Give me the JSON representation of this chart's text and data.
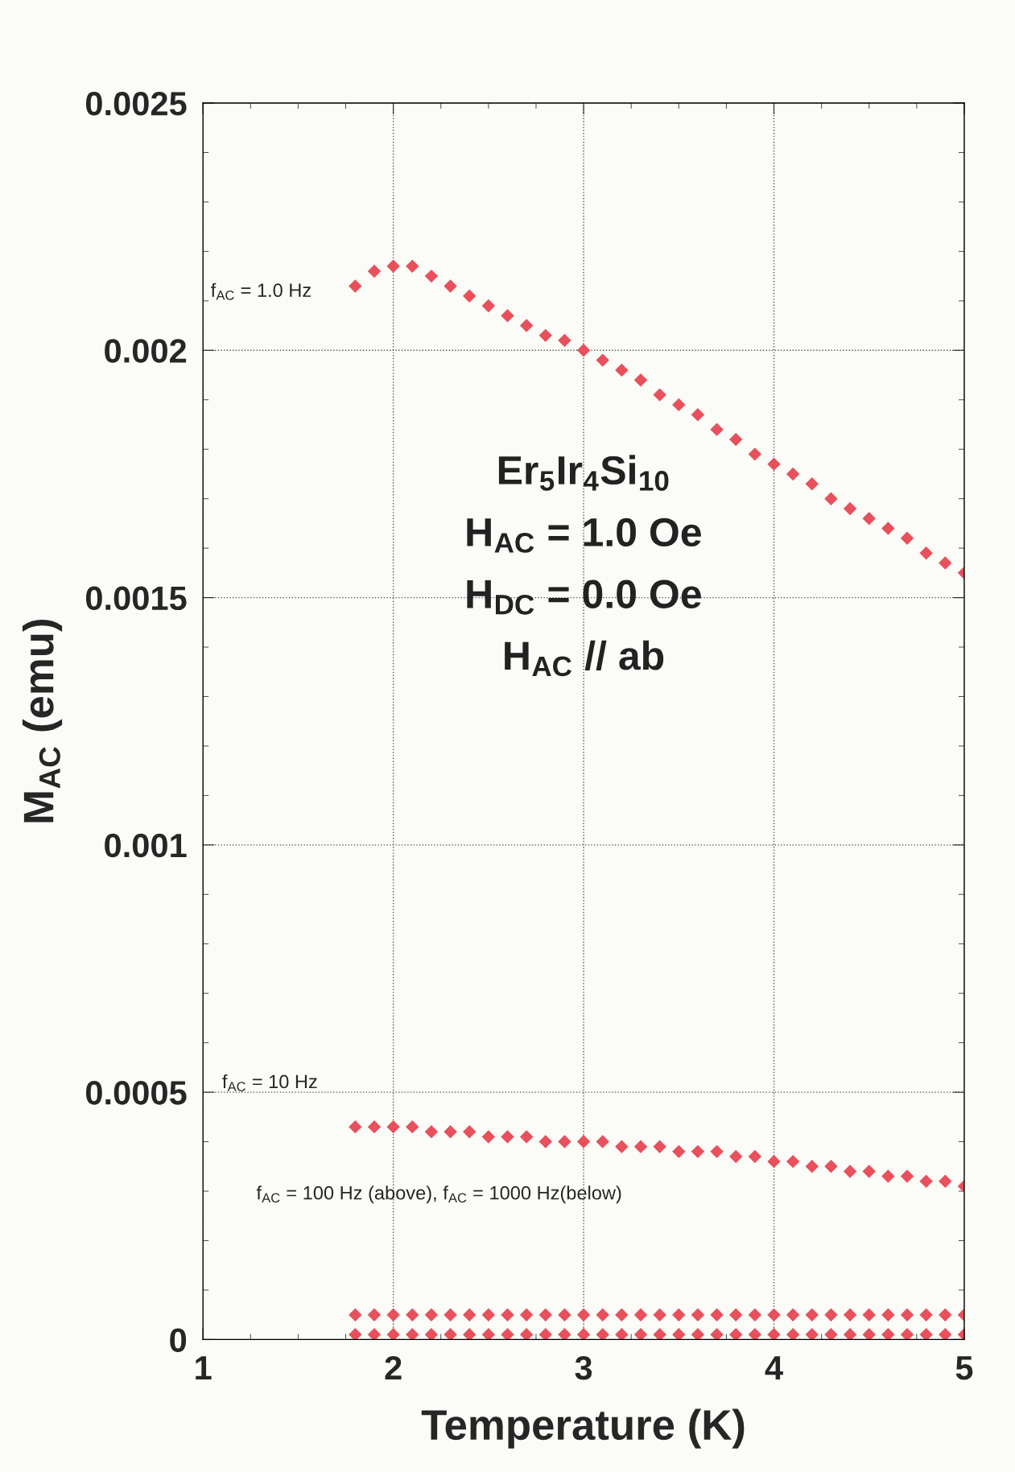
{
  "chart_data": {
    "type": "scatter",
    "xlabel": "Temperature (K)",
    "ylabel": "M$_{AC}$ (emu)",
    "x": [
      1.8,
      1.9,
      2.0,
      2.1,
      2.2,
      2.3,
      2.4,
      2.5,
      2.6,
      2.7,
      2.8,
      2.9,
      3.0,
      3.1,
      3.2,
      3.3,
      3.4,
      3.5,
      3.6,
      3.7,
      3.8,
      3.9,
      4.0,
      4.1,
      4.2,
      4.3,
      4.4,
      4.5,
      4.6,
      4.7,
      4.8,
      4.9,
      5.0
    ],
    "series": [
      {
        "color": "#e8505b",
        "values": [
          0.00213,
          0.00216,
          0.00217,
          0.00217,
          0.00215,
          0.00213,
          0.00211,
          0.00209,
          0.00207,
          0.00205,
          0.00203,
          0.00202,
          0.002,
          0.00198,
          0.00196,
          0.00194,
          0.00191,
          0.00189,
          0.00187,
          0.00184,
          0.00182,
          0.00179,
          0.00177,
          0.00175,
          0.00173,
          0.0017,
          0.00168,
          0.00166,
          0.00164,
          0.00162,
          0.00159,
          0.00157,
          0.00155
        ]
      },
      {
        "color": "#e8505b",
        "values": [
          0.00043,
          0.00043,
          0.00043,
          0.00043,
          0.00042,
          0.00042,
          0.00042,
          0.00041,
          0.00041,
          0.00041,
          0.0004,
          0.0004,
          0.0004,
          0.0004,
          0.00039,
          0.00039,
          0.00039,
          0.00038,
          0.00038,
          0.00038,
          0.00037,
          0.00037,
          0.00036,
          0.00036,
          0.00035,
          0.00035,
          0.00034,
          0.00034,
          0.00033,
          0.00033,
          0.00032,
          0.00032,
          0.00031
        ]
      },
      {
        "color": "#e8505b",
        "values": [
          5e-05,
          5e-05,
          5e-05,
          5e-05,
          5e-05,
          5e-05,
          5e-05,
          5e-05,
          5e-05,
          5e-05,
          5e-05,
          5e-05,
          5e-05,
          5e-05,
          5e-05,
          5e-05,
          5e-05,
          5e-05,
          5e-05,
          5e-05,
          5e-05,
          5e-05,
          5e-05,
          5e-05,
          5e-05,
          5e-05,
          5e-05,
          5e-05,
          5e-05,
          5e-05,
          5e-05,
          5e-05,
          5e-05
        ]
      },
      {
        "color": "#e8505b",
        "values": [
          1e-05,
          1e-05,
          1e-05,
          1e-05,
          1e-05,
          1e-05,
          1e-05,
          1e-05,
          1e-05,
          1e-05,
          1e-05,
          1e-05,
          1e-05,
          1e-05,
          1e-05,
          1e-05,
          1e-05,
          1e-05,
          1e-05,
          1e-05,
          1e-05,
          1e-05,
          1e-05,
          1e-05,
          1e-05,
          1e-05,
          1e-05,
          1e-05,
          1e-05,
          1e-05,
          1e-05,
          1e-05,
          1e-05
        ]
      }
    ],
    "xlim": [
      1,
      5
    ],
    "xticks": [
      1,
      2,
      3,
      4,
      5
    ],
    "ylim": [
      0,
      0.0025
    ],
    "yticks": [
      0,
      0.0005,
      0.001,
      0.0015,
      0.002,
      0.0025
    ],
    "grid": true,
    "marker": "diamond",
    "legend": false,
    "annotations": [
      "f$_{AC}$ = 1.0 Hz",
      "f$_{AC}$ = 10 Hz",
      "f$_{AC}$ = 100 Hz (above), f$_{AC}$ = 1000 Hz(below)",
      "Er$_{5}$Ir$_{4}$Si$_{10}$",
      "H$_{AC}$ = 1.0 Oe",
      "H$_{DC}$ = 0.0 Oe",
      "H$_{AC}$ // ab"
    ]
  }
}
